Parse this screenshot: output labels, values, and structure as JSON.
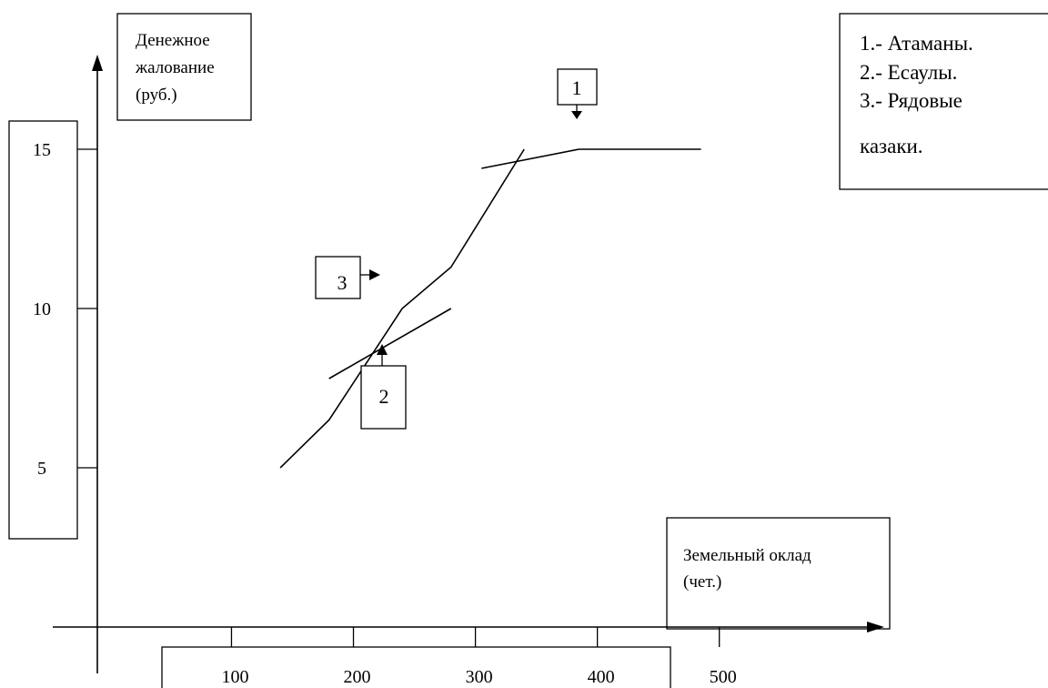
{
  "chart_data": {
    "type": "line",
    "ylabel": [
      "Денежное",
      "жалование",
      "(руб.)"
    ],
    "xlabel": [
      "Земельный оклад",
      "(чет.)"
    ],
    "x_ticks": [
      100,
      200,
      300,
      400,
      500
    ],
    "y_ticks": [
      15,
      10,
      5
    ],
    "xlim": [
      -10,
      680
    ],
    "ylim": [
      0,
      20
    ],
    "legend": {
      "placement": "top-right",
      "lines": [
        "1.- Атаманы.",
        "2.- Есаулы.",
        "3.- Рядовые",
        "казаки."
      ]
    },
    "series": [
      {
        "label": "1",
        "points": [
          [
            305,
            14.4
          ],
          [
            385,
            15.0
          ],
          [
            485,
            15.0
          ]
        ]
      },
      {
        "label": "2",
        "points": [
          [
            180,
            7.8
          ],
          [
            280,
            10.0
          ]
        ]
      },
      {
        "label": "3",
        "points": [
          [
            140,
            5.0
          ],
          [
            180,
            6.5
          ],
          [
            240,
            10.0
          ],
          [
            280,
            11.3
          ],
          [
            340,
            15.0
          ]
        ]
      }
    ],
    "annotations": [
      {
        "label": "1",
        "arrow": "down"
      },
      {
        "label": "2",
        "arrow": "up"
      },
      {
        "label": "3",
        "arrow": "right"
      }
    ]
  }
}
